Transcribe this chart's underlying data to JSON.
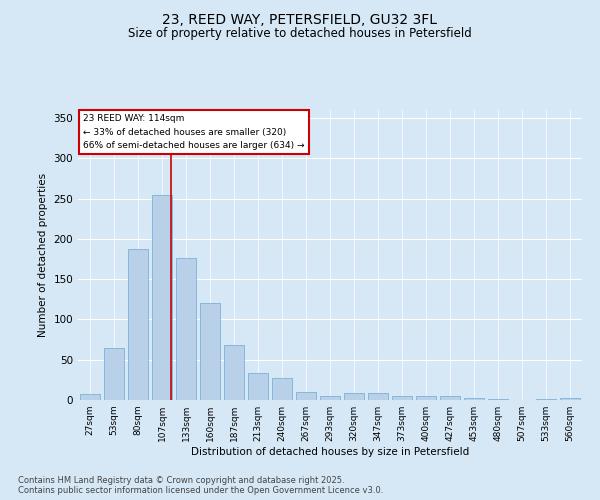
{
  "title1": "23, REED WAY, PETERSFIELD, GU32 3FL",
  "title2": "Size of property relative to detached houses in Petersfield",
  "xlabel": "Distribution of detached houses by size in Petersfield",
  "ylabel": "Number of detached properties",
  "categories": [
    "27sqm",
    "53sqm",
    "80sqm",
    "107sqm",
    "133sqm",
    "160sqm",
    "187sqm",
    "213sqm",
    "240sqm",
    "267sqm",
    "293sqm",
    "320sqm",
    "347sqm",
    "373sqm",
    "400sqm",
    "427sqm",
    "453sqm",
    "480sqm",
    "507sqm",
    "533sqm",
    "560sqm"
  ],
  "values": [
    7,
    65,
    188,
    254,
    176,
    120,
    68,
    33,
    27,
    10,
    5,
    9,
    9,
    5,
    5,
    5,
    3,
    1,
    0,
    1,
    2
  ],
  "bar_color": "#b8d0e8",
  "bar_edge_color": "#6aaad4",
  "background_color": "#d6e8f5",
  "grid_color": "#ffffff",
  "red_line_index": 3,
  "annotation_line1": "23 REED WAY: 114sqm",
  "annotation_line2": "← 33% of detached houses are smaller (320)",
  "annotation_line3": "66% of semi-detached houses are larger (634) →",
  "annotation_box_color": "#ffffff",
  "annotation_box_edge": "#cc0000",
  "ylim": [
    0,
    360
  ],
  "yticks": [
    0,
    50,
    100,
    150,
    200,
    250,
    300,
    350
  ],
  "footer1": "Contains HM Land Registry data © Crown copyright and database right 2025.",
  "footer2": "Contains public sector information licensed under the Open Government Licence v3.0."
}
